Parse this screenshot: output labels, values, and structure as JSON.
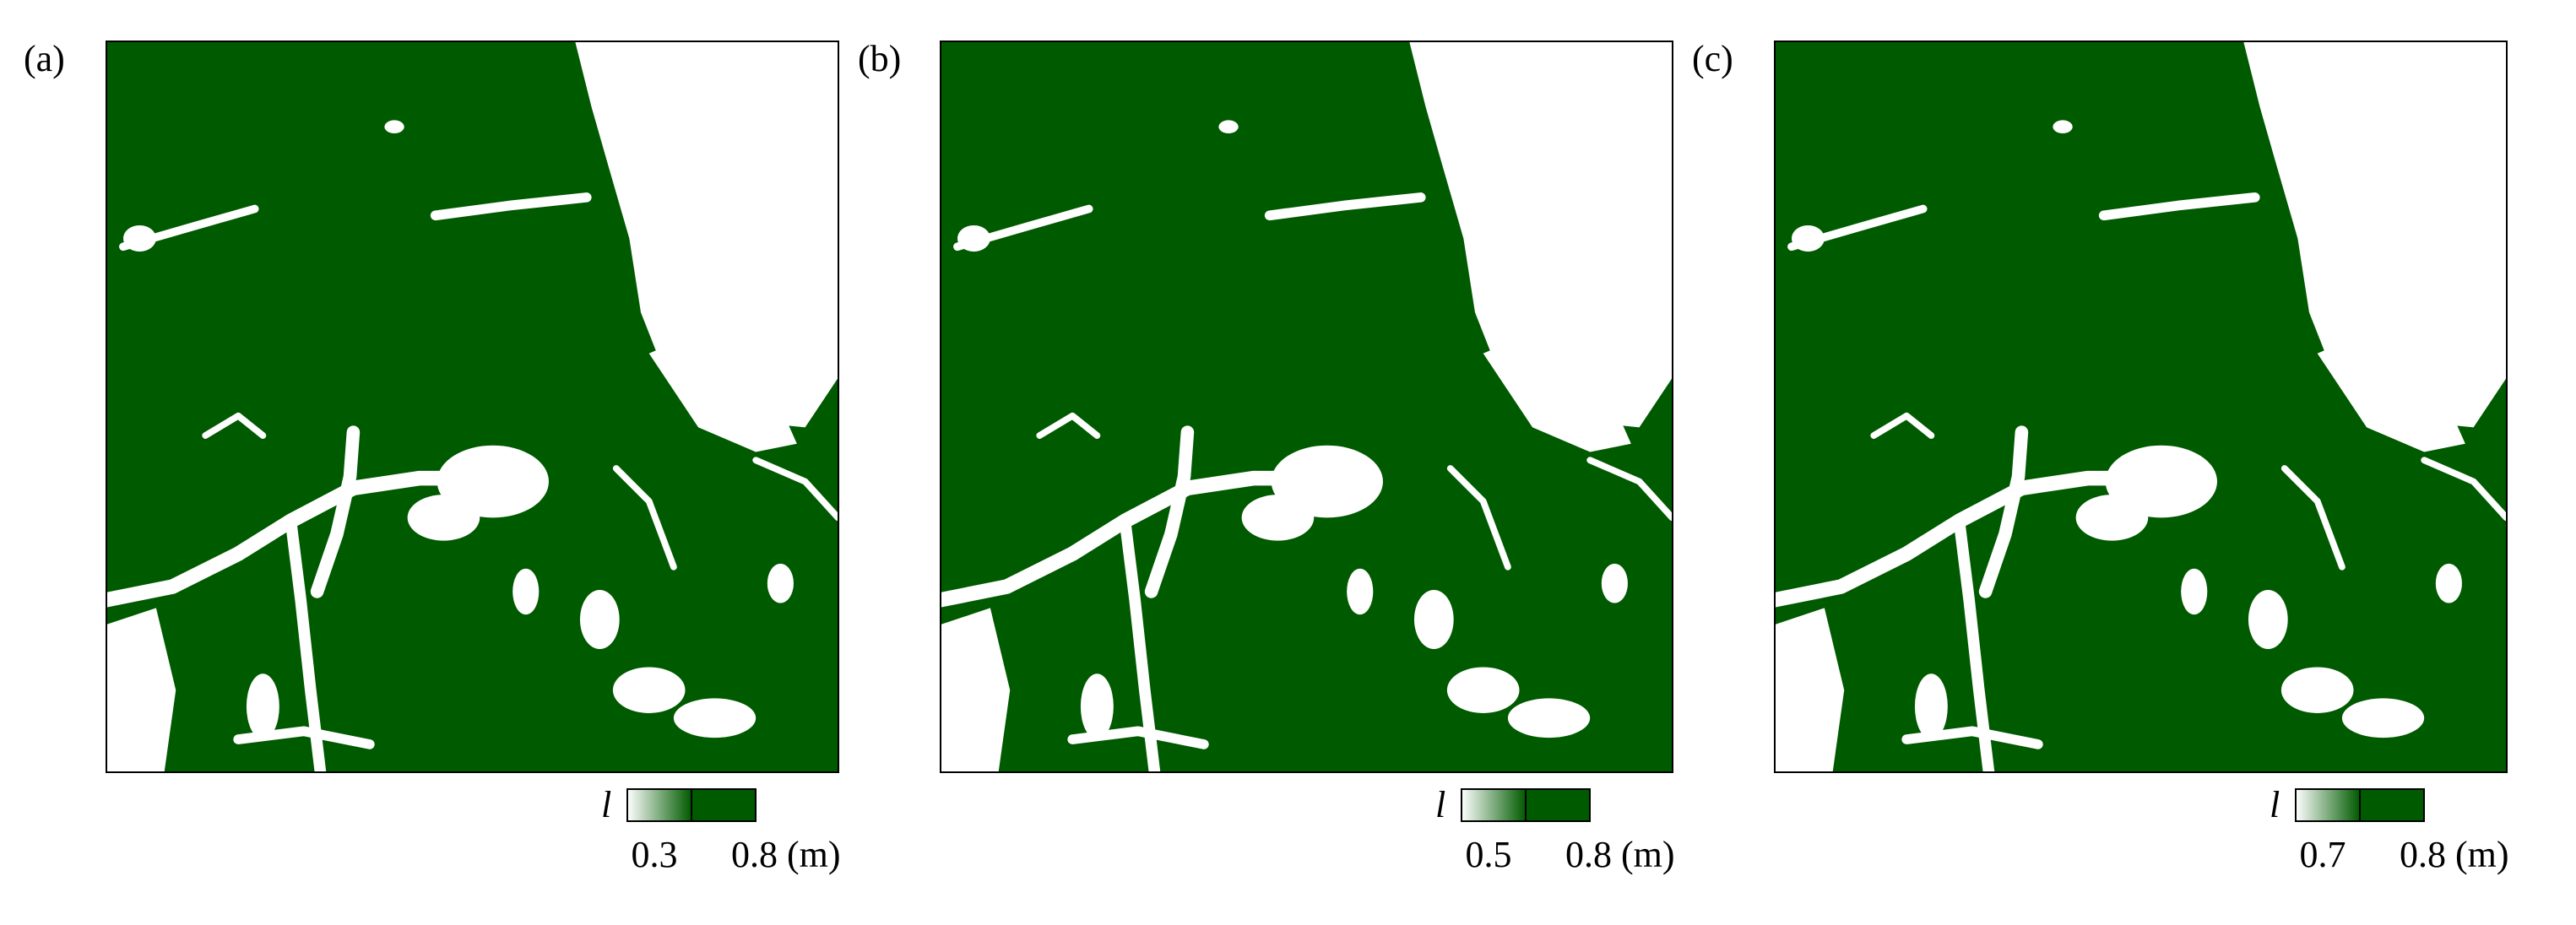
{
  "panels": [
    {
      "label": "(a)",
      "colorbar": {
        "symbol": "l",
        "min_label": "0.3",
        "max_label": "0.8 (m)"
      }
    },
    {
      "label": "(b)",
      "colorbar": {
        "symbol": "l",
        "min_label": "0.5",
        "max_label": "0.8 (m)"
      }
    },
    {
      "label": "(c)",
      "colorbar": {
        "symbol": "l",
        "min_label": "0.7",
        "max_label": "0.8 (m)"
      }
    }
  ]
}
